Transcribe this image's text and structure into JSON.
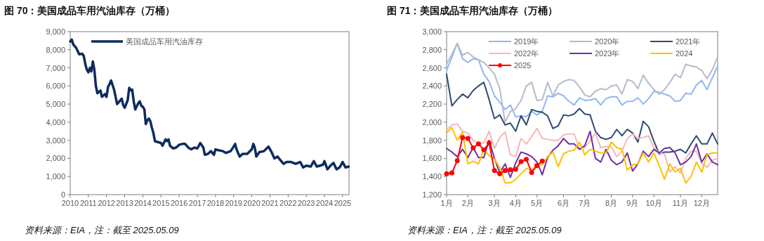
{
  "chart_data": [
    {
      "type": "line",
      "title": "图 70：美国成品车用汽油库存（万桶）",
      "legend": "top left",
      "annotations": [
        "资料来源：EIA，注：截至 2025.05.09"
      ],
      "xlim": [
        "2010-01-01",
        "2025-05-09"
      ],
      "xticks": [
        {
          "value": "2010-01-01",
          "label": "2010"
        },
        {
          "value": "2011-01-01",
          "label": "2011"
        },
        {
          "value": "2012-01-01",
          "label": "2012"
        },
        {
          "value": "2013-01-01",
          "label": "2013"
        },
        {
          "value": "2014-01-01",
          "label": "2014"
        },
        {
          "value": "2015-01-01",
          "label": "2015"
        },
        {
          "value": "2016-01-01",
          "label": "2016"
        },
        {
          "value": "2017-01-01",
          "label": "2017"
        },
        {
          "value": "2018-01-01",
          "label": "2018"
        },
        {
          "value": "2019-01-01",
          "label": "2019"
        },
        {
          "value": "2020-01-01",
          "label": "2020"
        },
        {
          "value": "2021-01-01",
          "label": "2021"
        },
        {
          "value": "2022-01-01",
          "label": "2022"
        },
        {
          "value": "2023-01-01",
          "label": "2023"
        },
        {
          "value": "2024-01-01",
          "label": "2024"
        },
        {
          "value": "2025-01-01",
          "label": "2025"
        }
      ],
      "ylim": [
        0,
        9000
      ],
      "yticks": [
        0,
        {
          "value": 1000,
          "label": "1,000"
        },
        {
          "value": 2000,
          "label": "2,000"
        },
        {
          "value": 3000,
          "label": "3,000"
        },
        {
          "value": 4000,
          "label": "4,000"
        },
        {
          "value": 5000,
          "label": "5,000"
        },
        {
          "value": 6000,
          "label": "6,000"
        },
        {
          "value": 7000,
          "label": "7,000"
        },
        {
          "value": 8000,
          "label": "8,000"
        },
        {
          "value": 9000,
          "label": "9,000"
        }
      ],
      "x": [
        "2010-01",
        "2010-02",
        "2010-03",
        "2010-05",
        "2010-07",
        "2010-09",
        "2010-10",
        "2010-11",
        "2010-12",
        "2011-01",
        "2011-02",
        "2011-03",
        "2011-04",
        "2011-05",
        "2011-06",
        "2011-07",
        "2011-09",
        "2011-10",
        "2011-12",
        "2012-01",
        "2012-02",
        "2012-03",
        "2012-04",
        "2012-06",
        "2012-08",
        "2012-09",
        "2012-11",
        "2012-12",
        "2013-01",
        "2013-03",
        "2013-04",
        "2013-05",
        "2013-06",
        "2013-07",
        "2013-08",
        "2013-10",
        "2013-11",
        "2013-12",
        "2014-01",
        "2014-02",
        "2014-03",
        "2014-04",
        "2014-05",
        "2014-06",
        "2014-07",
        "2014-08",
        "2014-09",
        "2014-11",
        "2015-01",
        "2015-02",
        "2015-04",
        "2015-05",
        "2015-06",
        "2015-07",
        "2015-09",
        "2015-11",
        "2016-01",
        "2016-03",
        "2016-05",
        "2016-07",
        "2016-09",
        "2016-11",
        "2017-01",
        "2017-03",
        "2017-05",
        "2017-06",
        "2017-08",
        "2017-10",
        "2017-12",
        "2018-01",
        "2018-03",
        "2018-06",
        "2018-08",
        "2018-11",
        "2019-01",
        "2019-02",
        "2019-03",
        "2019-05",
        "2019-07",
        "2019-10",
        "2020-01",
        "2020-02",
        "2020-03",
        "2020-04",
        "2020-06",
        "2020-09",
        "2020-12",
        "2021-02",
        "2021-04",
        "2021-06",
        "2021-08",
        "2021-10",
        "2021-12",
        "2022-03",
        "2022-06",
        "2022-09",
        "2022-11",
        "2023-01",
        "2023-04",
        "2023-06",
        "2023-08",
        "2023-10",
        "2023-12",
        "2024-01",
        "2024-03",
        "2024-05",
        "2024-07",
        "2024-09",
        "2024-11",
        "2025-01",
        "2025-03",
        "2025-05"
      ],
      "series": [
        {
          "name": "美国成品车用汽油库存",
          "color": "#0d2b5e",
          "values": [
            8450,
            8560,
            8300,
            8100,
            7750,
            7780,
            7650,
            7200,
            6900,
            6750,
            7000,
            6800,
            7350,
            6900,
            6000,
            5600,
            5750,
            5400,
            5550,
            5400,
            5950,
            6100,
            6300,
            5800,
            5000,
            5100,
            5300,
            4950,
            4800,
            5200,
            5900,
            5750,
            5800,
            5150,
            4700,
            5050,
            5150,
            4900,
            4850,
            4700,
            3900,
            4100,
            4200,
            4050,
            3700,
            3400,
            2950,
            2900,
            2850,
            2700,
            3050,
            2950,
            3050,
            2700,
            2550,
            2600,
            2750,
            2800,
            2800,
            2600,
            2500,
            2600,
            2550,
            2850,
            2600,
            2200,
            2250,
            2400,
            2200,
            2500,
            2450,
            2400,
            2300,
            2400,
            2650,
            2800,
            2500,
            2100,
            2250,
            2250,
            2500,
            2800,
            2600,
            2100,
            2350,
            2400,
            2650,
            2350,
            2000,
            2100,
            1900,
            1700,
            1800,
            1800,
            1700,
            1800,
            1500,
            1600,
            1550,
            1850,
            1550,
            1600,
            1650,
            1850,
            1400,
            1600,
            1750,
            1400,
            1500,
            1800,
            1500,
            1550
          ]
        }
      ]
    },
    {
      "type": "line",
      "title": "图 71：美国成品车用汽油库存（万桶）",
      "legend": "top",
      "annotations": [
        "资料来源：EIA，注：截至 2025.05.09"
      ],
      "categories": [
        "1月",
        null,
        null,
        null,
        "2月",
        null,
        null,
        null,
        null,
        "3月",
        null,
        null,
        null,
        "4月",
        null,
        null,
        null,
        "5月",
        null,
        null,
        null,
        null,
        "6月",
        null,
        null,
        null,
        "7月",
        null,
        null,
        null,
        null,
        "8月",
        null,
        null,
        null,
        "9月",
        null,
        null,
        null,
        "10月",
        null,
        null,
        null,
        null,
        "11月",
        null,
        null,
        null,
        "12月",
        null,
        null,
        null
      ],
      "ylim": [
        1200,
        3000
      ],
      "yticks": [
        {
          "value": 1200,
          "label": "1,200"
        },
        {
          "value": 1400,
          "label": "1,400"
        },
        {
          "value": 1600,
          "label": "1,600"
        },
        {
          "value": 1800,
          "label": "1,800"
        },
        {
          "value": 2000,
          "label": "2,000"
        },
        {
          "value": 2200,
          "label": "2,200"
        },
        {
          "value": 2400,
          "label": "2,400"
        },
        {
          "value": 2600,
          "label": "2,600"
        },
        {
          "value": 2800,
          "label": "2,800"
        },
        {
          "value": 3000,
          "label": "3,000"
        }
      ],
      "series": [
        {
          "name": "2019年",
          "color": "#8fb8f2",
          "values": [
            2570,
            2720,
            2870,
            2700,
            2660,
            2700,
            2690,
            2530,
            2450,
            2290,
            2220,
            2140,
            2190,
            2060,
            2070,
            2060,
            2120,
            2080,
            2120,
            2290,
            2280,
            2320,
            2290,
            2230,
            2190,
            2270,
            2240,
            2245,
            2260,
            2190,
            2260,
            2280,
            2280,
            2190,
            2230,
            2230,
            2270,
            2200,
            2260,
            2340,
            2330,
            2310,
            2290,
            2230,
            2240,
            2320,
            2310,
            2410,
            2460,
            2360,
            2490,
            2620
          ]
        },
        {
          "name": "2020年",
          "color": "#b4bccb",
          "values": [
            2640,
            2750,
            2870,
            2740,
            2770,
            2720,
            2690,
            2660,
            2600,
            2530,
            2370,
            2000,
            2120,
            2150,
            2240,
            2400,
            2440,
            2240,
            2250,
            2440,
            2290,
            2410,
            2450,
            2470,
            2460,
            2390,
            2300,
            2280,
            2340,
            2370,
            2360,
            2400,
            2410,
            2310,
            2470,
            2450,
            2370,
            2520,
            2430,
            2360,
            2310,
            2360,
            2440,
            2530,
            2490,
            2640,
            2620,
            2610,
            2570,
            2480,
            2580,
            2720
          ]
        },
        {
          "name": "2021年",
          "color": "#2e4a72",
          "values": [
            2530,
            2180,
            2250,
            2310,
            2270,
            2350,
            2400,
            2440,
            2250,
            2040,
            2080,
            1970,
            1990,
            1900,
            2070,
            1970,
            2140,
            2120,
            2110,
            2070,
            1930,
            1960,
            2080,
            2070,
            2090,
            2150,
            2090,
            2080,
            1900,
            1830,
            1810,
            1830,
            1920,
            1850,
            1920,
            1880,
            1780,
            2010,
            1950,
            1790,
            1650,
            1670,
            1670,
            1680,
            1700,
            1660,
            1760,
            1850,
            1760,
            1760,
            1880,
            1760
          ]
        },
        {
          "name": "2022年",
          "color": "#f7b7b9",
          "values": [
            1910,
            1970,
            1980,
            1900,
            1880,
            1800,
            1770,
            1770,
            1900,
            1710,
            1830,
            1890,
            1640,
            1620,
            1820,
            1760,
            1840,
            1930,
            1820,
            1810,
            1800,
            1800,
            1860,
            1870,
            1870,
            1710,
            1720,
            1790,
            1880,
            1720,
            1730,
            1730,
            1620,
            1680,
            1820,
            1870,
            1820,
            1830,
            1850,
            1720,
            1660,
            1650,
            1450,
            1510,
            1440,
            1600,
            1680,
            1680,
            1550,
            1500,
            1580,
            1600
          ]
        },
        {
          "name": "2023年",
          "color": "#7030a0",
          "values": [
            1710,
            1670,
            1620,
            1700,
            1610,
            1720,
            1610,
            1610,
            1800,
            1600,
            1440,
            1540,
            1390,
            1550,
            1670,
            1650,
            1620,
            1560,
            1420,
            1610,
            1690,
            1740,
            1820,
            1760,
            1760,
            1700,
            1740,
            1900,
            1600,
            1560,
            1700,
            1580,
            1530,
            1560,
            1660,
            1460,
            1540,
            1680,
            1620,
            1700,
            1660,
            1710,
            1720,
            1660,
            1530,
            1560,
            1620,
            1760,
            1560,
            1650,
            1560,
            1530
          ]
        },
        {
          "name": "2024",
          "color": "#ffc000",
          "values": [
            1880,
            1940,
            1800,
            1890,
            1540,
            1570,
            1540,
            1700,
            1630,
            1590,
            1500,
            1330,
            1330,
            1370,
            1430,
            1490,
            1470,
            1530,
            1530,
            1620,
            1670,
            1510,
            1650,
            1680,
            1690,
            1780,
            1640,
            1700,
            1680,
            1660,
            1660,
            1780,
            1720,
            1700,
            1470,
            1530,
            1540,
            1660,
            1560,
            1660,
            1520,
            1370,
            1540,
            1450,
            1490,
            1330,
            1400,
            1560,
            1450,
            1640,
            1660,
            1660
          ]
        },
        {
          "name": "2025",
          "color": "#ff0000",
          "marker": "circle",
          "values": [
            1430,
            1440,
            1575,
            1830,
            1820,
            1715,
            1760,
            1695,
            1770,
            1465,
            1430,
            1465,
            1475,
            1480,
            1565,
            1590,
            1445,
            1520,
            1570,
            null,
            null,
            null,
            null,
            null,
            null,
            null,
            null,
            null,
            null,
            null,
            null,
            null,
            null,
            null,
            null,
            null,
            null,
            null,
            null,
            null,
            null,
            null,
            null,
            null,
            null,
            null,
            null,
            null,
            null,
            null,
            null,
            null
          ]
        }
      ]
    }
  ]
}
